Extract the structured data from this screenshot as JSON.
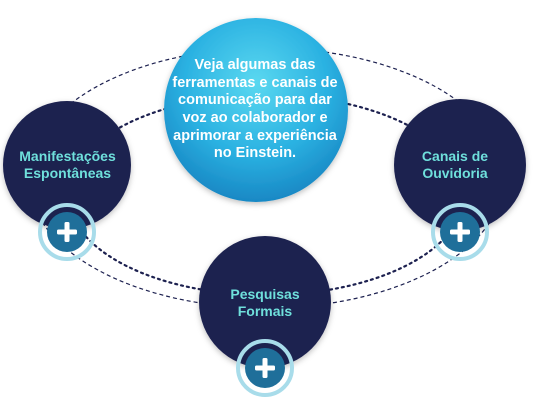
{
  "center": {
    "text": "Veja algumas das\nferramentas e canais de\ncomunicação para dar\nvoz ao colaborador e\naprimorar a experiência\nno Einstein."
  },
  "nodes": {
    "left": {
      "label": "Manifestações\nEspontâneas",
      "icon": "plus-icon"
    },
    "right": {
      "label": "Canais de\nOuvidoria",
      "icon": "plus-icon"
    },
    "bottom": {
      "label": "Pesquisas\nFormais",
      "icon": "plus-icon"
    }
  },
  "colors": {
    "navy": "#1d2150",
    "label_teal": "#6fe0dc",
    "center_top": "#4fd2ee",
    "center_bottom": "#1a8fc9",
    "plus_fill": "#1f6f9a",
    "plus_ring": "#a8dcea",
    "dashed": "#1d2150"
  }
}
